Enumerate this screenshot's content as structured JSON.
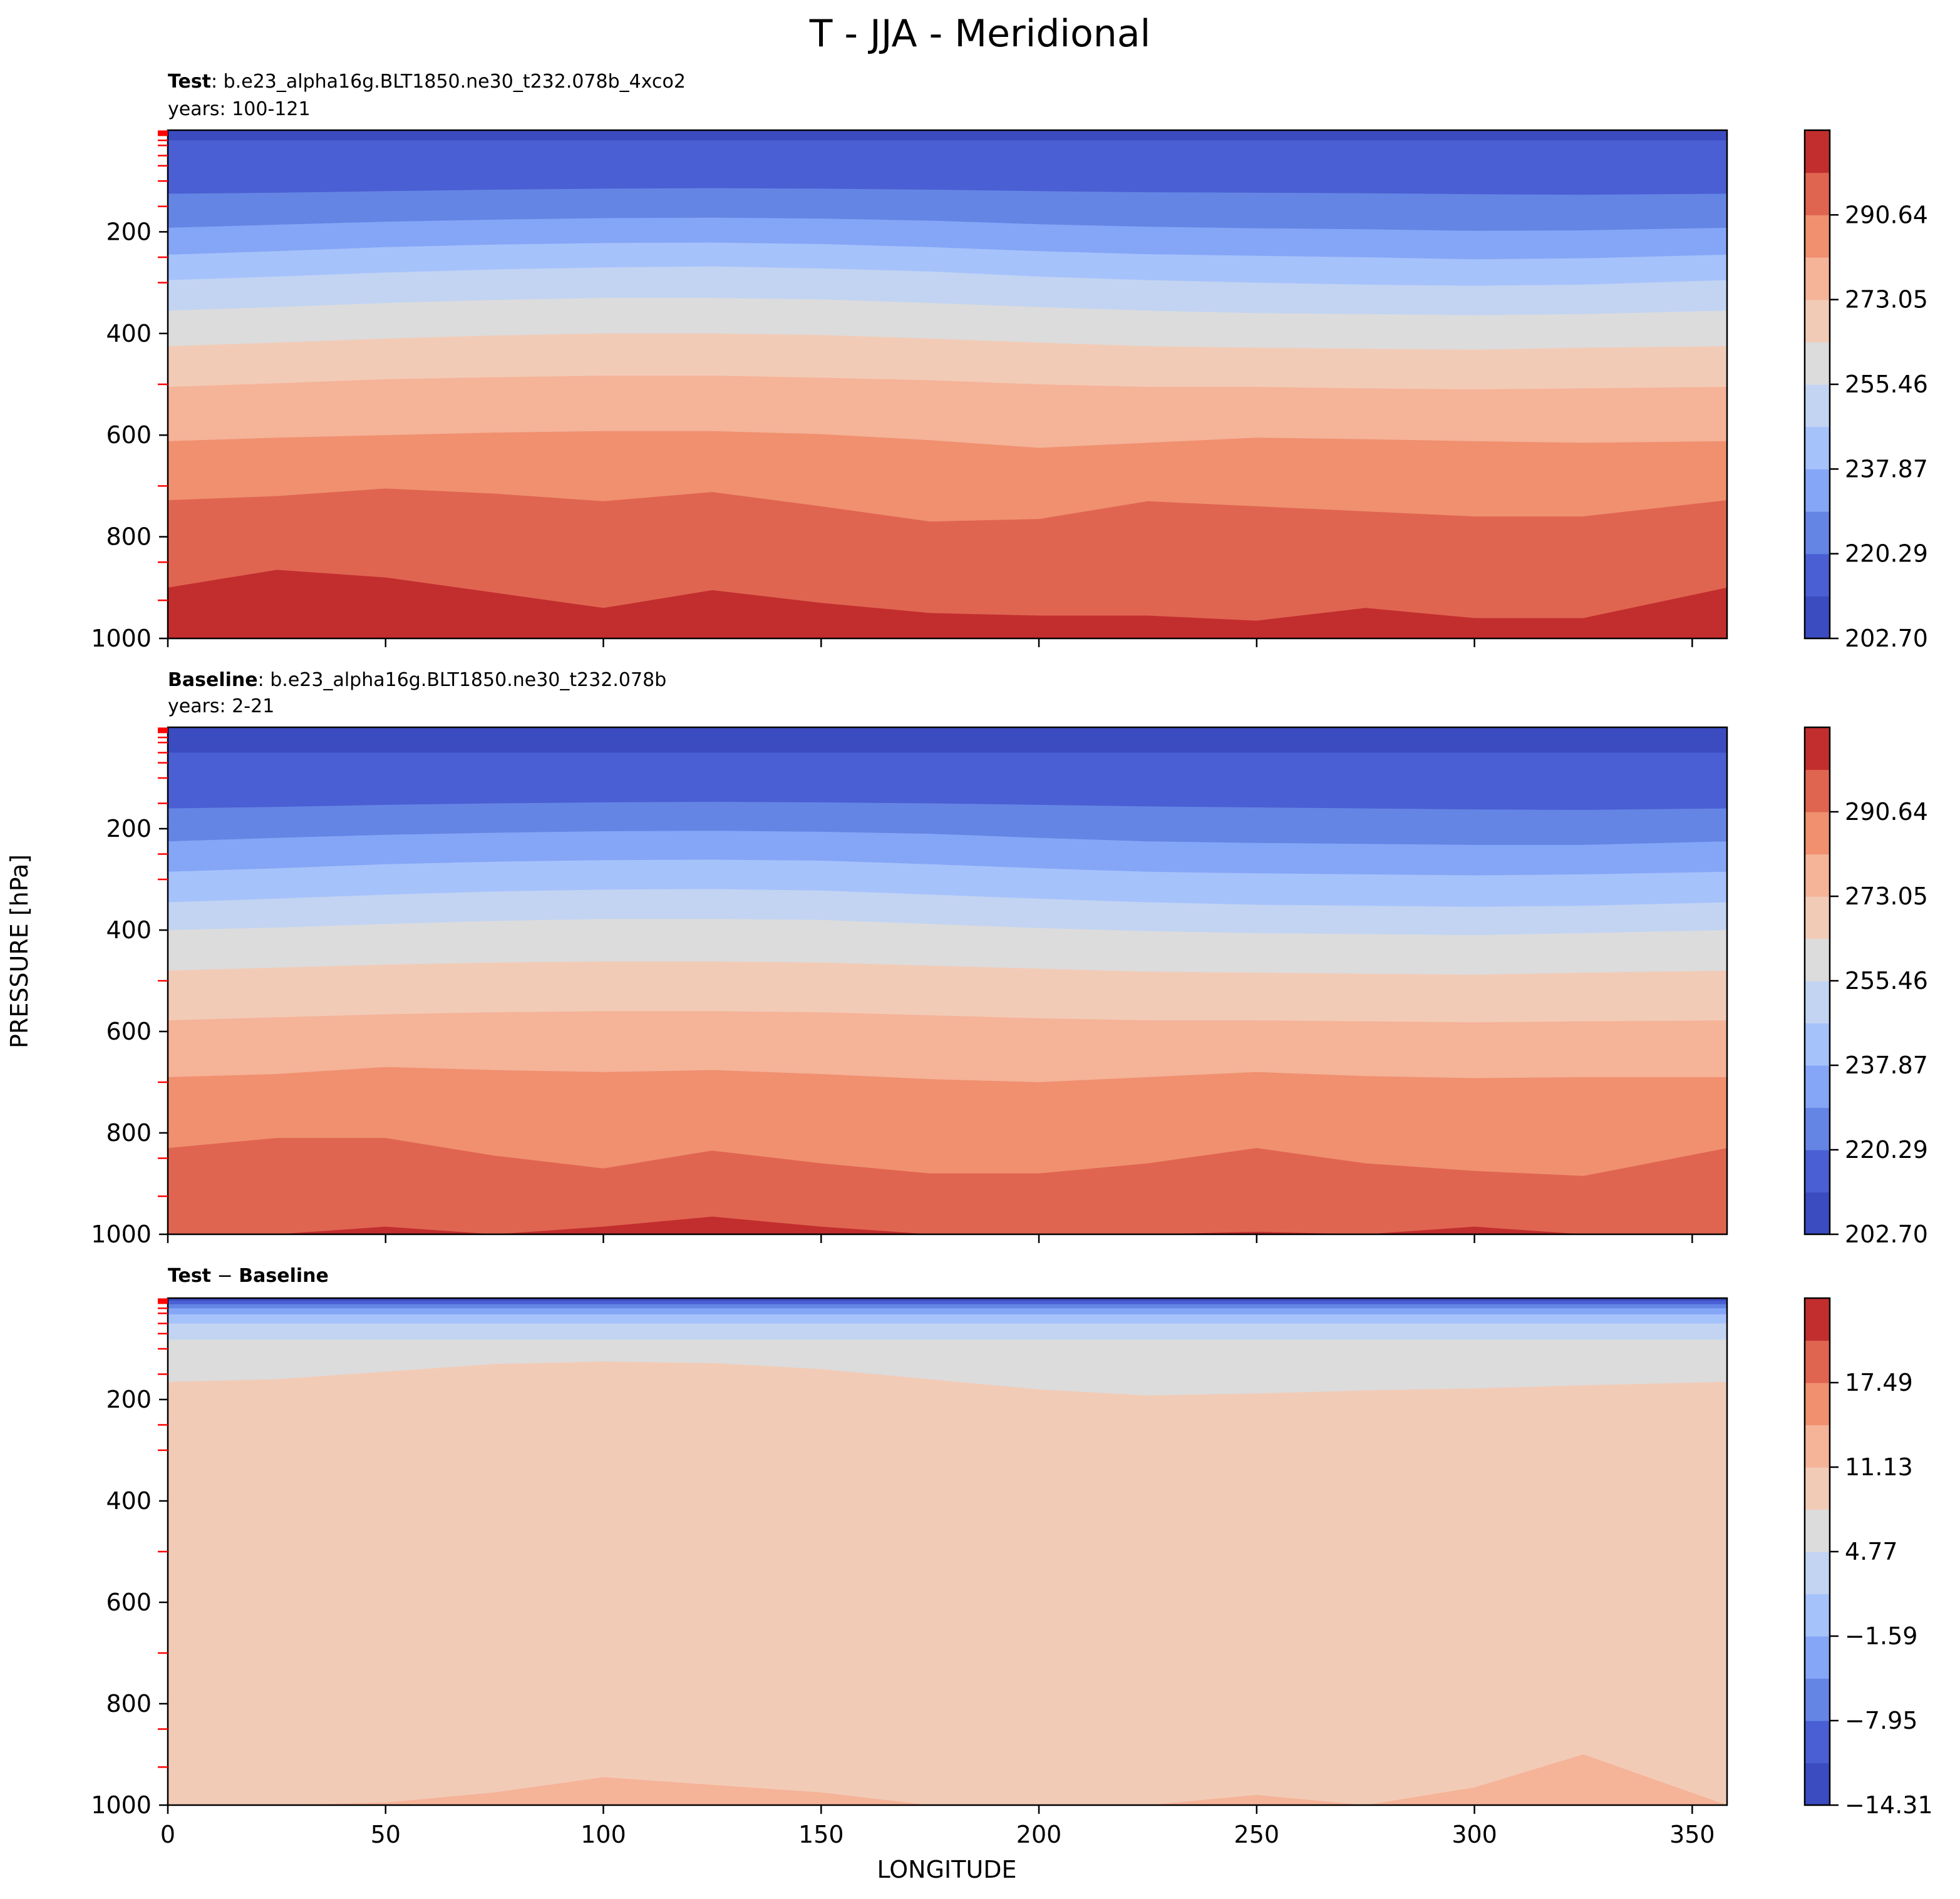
{
  "figure_title": "T - JJA - Meridional",
  "colors": {
    "test_levels": [
      "#3b4cc0",
      "#4a5fd3",
      "#6585e5",
      "#85a5f6",
      "#a5c2fb",
      "#c3d4f2",
      "#dcdcdc",
      "#f2cbb7",
      "#f5b398",
      "#f0906f",
      "#e06551",
      "#c22e2e",
      "#b40426"
    ],
    "diff_levels": [
      "#3b4cc0",
      "#4a5fd3",
      "#6585e5",
      "#85a5f6",
      "#a5c2fb",
      "#c3d4f2",
      "#dcdcdc",
      "#f2cbb7",
      "#f5b398",
      "#f0906f",
      "#e06551",
      "#c22e2e",
      "#b40426"
    ],
    "tick_red": "#ff0000"
  },
  "panels": [
    {
      "id": "test",
      "label_bold": "Test",
      "label_rest": ": b.e23_alpha16g.BLT1850.ne30_t232.078b_4xco2",
      "years": "years: 100-121",
      "colorbar_ticks": [
        "202.70",
        "220.29",
        "237.87",
        "255.46",
        "273.05",
        "290.64"
      ]
    },
    {
      "id": "baseline",
      "label_bold": "Baseline",
      "label_rest": ": b.e23_alpha16g.BLT1850.ne30_t232.078b",
      "years": "years: 2-21",
      "colorbar_ticks": [
        "202.70",
        "220.29",
        "237.87",
        "255.46",
        "273.05",
        "290.64"
      ]
    },
    {
      "id": "diff",
      "label_bold": "Test",
      "label_minus": " − ",
      "label_bold2": "Baseline",
      "colorbar_ticks": [
        "−14.31",
        "−7.95",
        "−1.59",
        "4.77",
        "11.13",
        "17.49"
      ]
    }
  ],
  "chart_data": [
    {
      "type": "contourf",
      "title": "Test : b.e23_alpha16g.BLT1850.ne30_t232.078b_4xco2",
      "xlabel": "",
      "ylabel": "PRESSURE [hPa]",
      "xlim": [
        0,
        358
      ],
      "ylim": [
        1000,
        0
      ],
      "yticks": [
        200,
        400,
        600,
        800,
        1000
      ],
      "xticks": [
        0,
        50,
        100,
        150,
        200,
        250,
        300,
        350
      ],
      "levels": [
        202.7,
        211.5,
        220.29,
        229.08,
        237.87,
        246.67,
        255.46,
        264.25,
        273.05,
        281.84,
        290.64,
        299.43
      ],
      "boundary_x": [
        0,
        25,
        50,
        75,
        100,
        125,
        150,
        175,
        200,
        225,
        250,
        275,
        300,
        325,
        358
      ],
      "boundaries": [
        {
          "level": 211.5,
          "p": [
            20,
            20,
            20,
            20,
            20,
            20,
            20,
            20,
            20,
            20,
            20,
            20,
            20,
            20,
            20
          ]
        },
        {
          "level": 220.29,
          "p": [
            125,
            123,
            120,
            117,
            115,
            114,
            115,
            117,
            120,
            122,
            123,
            124,
            126,
            127,
            125
          ]
        },
        {
          "level": 229.08,
          "p": [
            192,
            186,
            180,
            176,
            173,
            172,
            174,
            178,
            185,
            190,
            193,
            195,
            198,
            197,
            192
          ]
        },
        {
          "level": 237.87,
          "p": [
            245,
            238,
            230,
            225,
            222,
            221,
            224,
            230,
            238,
            244,
            247,
            250,
            254,
            252,
            245
          ]
        },
        {
          "level": 246.67,
          "p": [
            295,
            288,
            280,
            274,
            270,
            268,
            272,
            278,
            288,
            295,
            300,
            304,
            306,
            304,
            295
          ]
        },
        {
          "level": 255.46,
          "p": [
            355,
            348,
            340,
            334,
            330,
            330,
            333,
            340,
            348,
            355,
            360,
            362,
            364,
            362,
            355
          ]
        },
        {
          "level": 264.25,
          "p": [
            425,
            418,
            410,
            404,
            400,
            400,
            403,
            410,
            418,
            425,
            428,
            430,
            432,
            428,
            425
          ]
        },
        {
          "level": 273.05,
          "p": [
            505,
            498,
            490,
            486,
            483,
            483,
            487,
            492,
            500,
            505,
            505,
            508,
            510,
            508,
            505
          ]
        },
        {
          "level": 281.84,
          "p": [
            612,
            605,
            600,
            595,
            592,
            592,
            598,
            610,
            625,
            615,
            605,
            608,
            612,
            615,
            612
          ]
        },
        {
          "level": 290.64,
          "p": [
            728,
            720,
            705,
            715,
            730,
            712,
            740,
            770,
            765,
            730,
            740,
            750,
            760,
            760,
            728
          ]
        },
        {
          "level": 299.43,
          "p": [
            900,
            865,
            880,
            910,
            940,
            905,
            930,
            950,
            955,
            955,
            965,
            940,
            960,
            960,
            900
          ]
        }
      ]
    },
    {
      "type": "contourf",
      "title": "Baseline : b.e23_alpha16g.BLT1850.ne30_t232.078b",
      "xlabel": "",
      "ylabel": "PRESSURE [hPa]",
      "xlim": [
        0,
        358
      ],
      "ylim": [
        1000,
        0
      ],
      "yticks": [
        200,
        400,
        600,
        800,
        1000
      ],
      "xticks": [
        0,
        50,
        100,
        150,
        200,
        250,
        300,
        350
      ],
      "levels": [
        202.7,
        211.5,
        220.29,
        229.08,
        237.87,
        246.67,
        255.46,
        264.25,
        273.05,
        281.84,
        290.64,
        299.43
      ],
      "boundary_x": [
        0,
        25,
        50,
        75,
        100,
        125,
        150,
        175,
        200,
        225,
        250,
        275,
        300,
        325,
        358
      ],
      "boundaries": [
        {
          "level": 211.5,
          "p": [
            50,
            50,
            50,
            50,
            50,
            50,
            50,
            50,
            50,
            50,
            50,
            50,
            50,
            50,
            50
          ]
        },
        {
          "level": 220.29,
          "p": [
            160,
            157,
            153,
            150,
            148,
            147,
            148,
            150,
            153,
            156,
            158,
            160,
            162,
            163,
            160
          ]
        },
        {
          "level": 229.08,
          "p": [
            225,
            218,
            212,
            208,
            205,
            204,
            206,
            210,
            218,
            225,
            228,
            230,
            232,
            232,
            225
          ]
        },
        {
          "level": 237.87,
          "p": [
            285,
            278,
            270,
            265,
            262,
            261,
            263,
            270,
            278,
            285,
            288,
            290,
            292,
            290,
            285
          ]
        },
        {
          "level": 246.67,
          "p": [
            345,
            338,
            330,
            324,
            320,
            319,
            322,
            330,
            338,
            345,
            350,
            352,
            354,
            352,
            345
          ]
        },
        {
          "level": 255.46,
          "p": [
            400,
            395,
            388,
            382,
            378,
            378,
            380,
            388,
            396,
            402,
            406,
            408,
            410,
            406,
            400
          ]
        },
        {
          "level": 264.25,
          "p": [
            480,
            474,
            468,
            464,
            462,
            462,
            464,
            470,
            476,
            482,
            484,
            486,
            488,
            484,
            480
          ]
        },
        {
          "level": 273.05,
          "p": [
            578,
            572,
            566,
            562,
            560,
            560,
            562,
            568,
            574,
            578,
            578,
            580,
            582,
            580,
            578
          ]
        },
        {
          "level": 281.84,
          "p": [
            690,
            684,
            670,
            676,
            680,
            676,
            684,
            694,
            700,
            690,
            680,
            688,
            692,
            690,
            690
          ]
        },
        {
          "level": 290.64,
          "p": [
            830,
            810,
            810,
            845,
            870,
            835,
            860,
            880,
            880,
            860,
            830,
            860,
            875,
            885,
            830
          ]
        },
        {
          "level": 299.43,
          "p": [
            1000,
            1000,
            985,
            1000,
            985,
            965,
            985,
            1000,
            1000,
            1000,
            995,
            1000,
            985,
            1000,
            1000
          ]
        }
      ]
    },
    {
      "type": "contourf",
      "title": "Test − Baseline",
      "xlabel": "LONGITUDE",
      "ylabel": "PRESSURE [hPa]",
      "xlim": [
        0,
        358
      ],
      "ylim": [
        1000,
        0
      ],
      "yticks": [
        200,
        400,
        600,
        800,
        1000
      ],
      "xticks": [
        0,
        50,
        100,
        150,
        200,
        250,
        300,
        350
      ],
      "levels": [
        -17.49,
        -14.31,
        -11.13,
        -7.95,
        -4.77,
        -1.59,
        1.59,
        4.77,
        7.95,
        11.13,
        14.31,
        17.49
      ],
      "boundary_x": [
        0,
        25,
        50,
        75,
        100,
        125,
        150,
        175,
        200,
        225,
        250,
        275,
        300,
        325,
        358
      ],
      "boundaries": [
        {
          "level": -14.31,
          "p": [
            5,
            5,
            5,
            5,
            5,
            5,
            5,
            5,
            5,
            5,
            5,
            5,
            5,
            5,
            5
          ]
        },
        {
          "level": -11.13,
          "p": [
            12,
            12,
            12,
            12,
            12,
            12,
            12,
            12,
            12,
            12,
            12,
            12,
            12,
            12,
            12
          ]
        },
        {
          "level": -7.95,
          "p": [
            20,
            20,
            20,
            20,
            20,
            20,
            20,
            20,
            20,
            20,
            20,
            20,
            20,
            20,
            20
          ]
        },
        {
          "level": -4.77,
          "p": [
            32,
            32,
            32,
            32,
            32,
            32,
            32,
            32,
            32,
            32,
            32,
            32,
            32,
            32,
            32
          ]
        },
        {
          "level": -1.59,
          "p": [
            50,
            50,
            50,
            50,
            50,
            50,
            50,
            50,
            50,
            50,
            50,
            50,
            50,
            50,
            50
          ]
        },
        {
          "level": 1.59,
          "p": [
            82,
            82,
            82,
            82,
            82,
            82,
            82,
            82,
            82,
            82,
            82,
            82,
            82,
            82,
            82
          ]
        },
        {
          "level": 4.77,
          "p": [
            165,
            160,
            145,
            130,
            125,
            128,
            140,
            160,
            180,
            192,
            188,
            182,
            178,
            172,
            165
          ]
        },
        {
          "level": 7.95,
          "p": [
            1000,
            1000,
            995,
            975,
            945,
            960,
            975,
            1000,
            1000,
            1000,
            980,
            1000,
            965,
            900,
            1000
          ]
        }
      ]
    }
  ]
}
